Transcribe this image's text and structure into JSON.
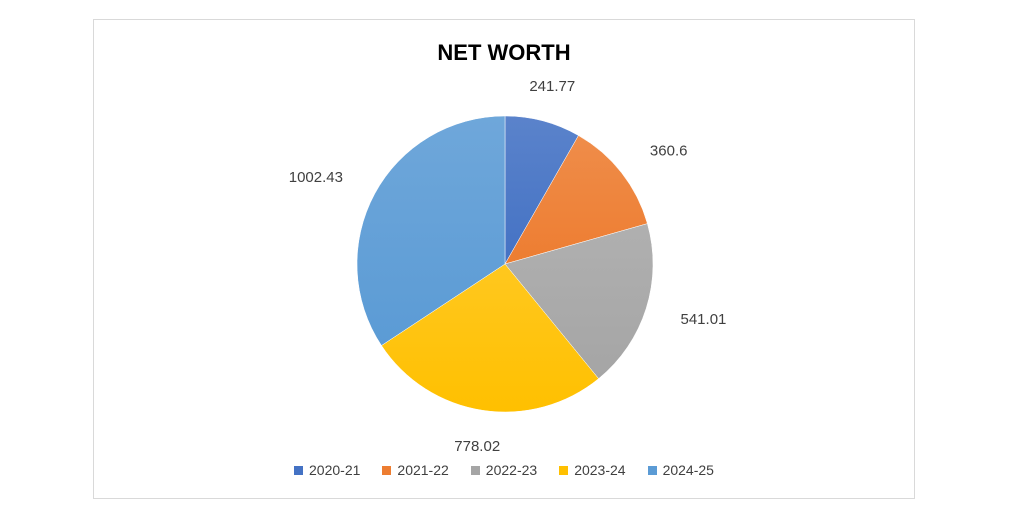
{
  "chart_data": {
    "type": "pie",
    "title": "NET WORTH",
    "categories": [
      "2020-21",
      "2021-22",
      "2022-23",
      "2023-24",
      "2024-25"
    ],
    "values": [
      241.77,
      360.6,
      541.01,
      778.02,
      1002.43
    ],
    "value_labels": [
      "241.77",
      "360.6",
      "541.01",
      "778.02",
      "1002.43"
    ],
    "colors": [
      "#4472C4",
      "#ED7D31",
      "#A5A5A5",
      "#FFC000",
      "#5B9BD5"
    ],
    "legend_position": "bottom"
  }
}
